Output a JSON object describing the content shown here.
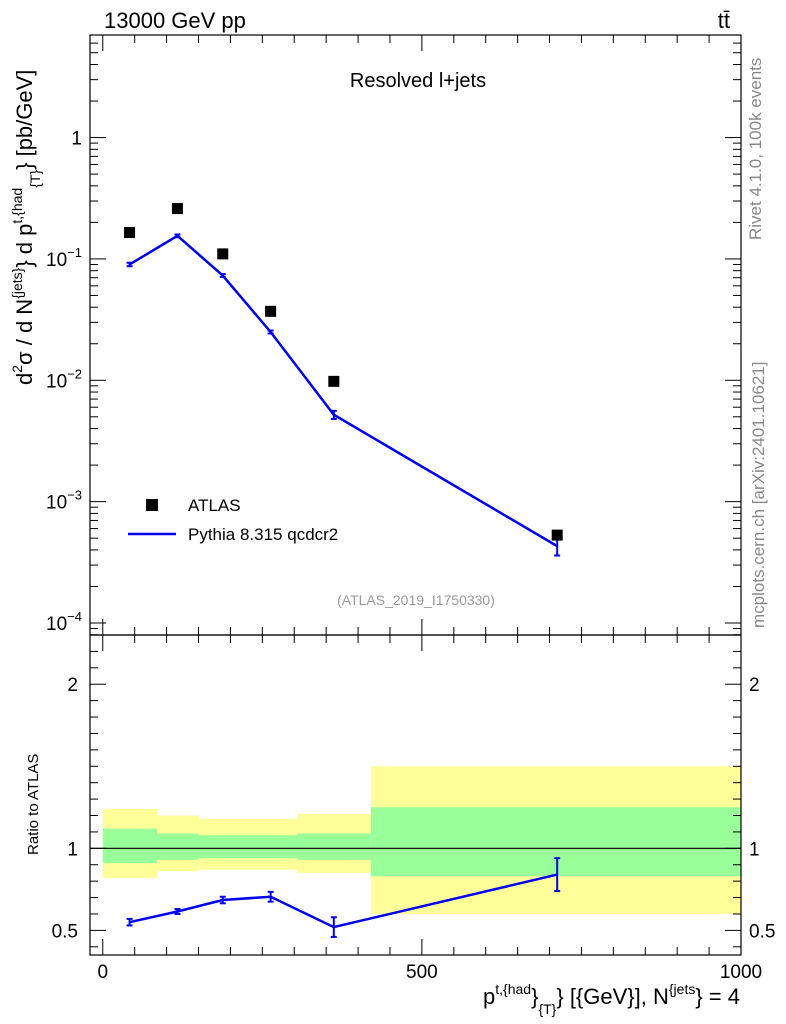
{
  "header": {
    "energy_label": "13000 GeV pp",
    "process_label": "tt̄"
  },
  "side_labels": {
    "rivet": "Rivet 4.1.0,  100k events",
    "mcplots": "mcplots.cern.ch [arXiv:2401.10621]"
  },
  "chart_data": [
    {
      "type": "scatter",
      "panel": "main",
      "title": "Resolved l+jets",
      "analysis_label": "(ATLAS_2019_I1750330)",
      "yscale": "log",
      "ylabel": {
        "base": "d",
        "sup1": "2",
        "mid": "σ  /  d N",
        "sup2": "{jets}",
        "rest": "} d p",
        "sup3": "t,{had",
        "sub": "{T}",
        "end": "} [pb/GeV]"
      },
      "xlim": [
        -20,
        1000
      ],
      "ylim": [
        0.0001,
        7
      ],
      "y_ticks": [
        {
          "v": 0.0001,
          "label": "10",
          "exp": "−4"
        },
        {
          "v": 0.001,
          "label": "10",
          "exp": "−3"
        },
        {
          "v": 0.01,
          "label": "10",
          "exp": "−2"
        },
        {
          "v": 0.1,
          "label": "10",
          "exp": "−1"
        },
        {
          "v": 1,
          "label": "1",
          "exp": ""
        }
      ],
      "legend": [
        {
          "name": "ATLAS",
          "marker": "square",
          "color": "#000000"
        },
        {
          "name": "Pythia 8.315 qcdcr2",
          "marker": "line",
          "color": "#0000ee"
        }
      ],
      "series": [
        {
          "name": "ATLAS",
          "color": "#000000",
          "x": [
            42,
            117,
            188,
            263,
            362,
            712
          ],
          "y": [
            0.165,
            0.26,
            0.11,
            0.037,
            0.0098,
            0.00053
          ]
        },
        {
          "name": "Pythia 8.315 qcdcr2",
          "color": "#0000ee",
          "x": [
            42,
            117,
            188,
            263,
            362,
            712
          ],
          "y": [
            0.09,
            0.155,
            0.073,
            0.025,
            0.0052,
            0.00043
          ],
          "err_lo": [
            0.087,
            0.151,
            0.071,
            0.0243,
            0.0048,
            0.00036
          ],
          "err_hi": [
            0.093,
            0.159,
            0.075,
            0.0257,
            0.0056,
            0.0005
          ]
        }
      ]
    },
    {
      "type": "line",
      "panel": "ratio",
      "ylabel": "Ratio to ATLAS",
      "xlabel": {
        "base": "p",
        "sup1": "t,{had",
        "mid": "}",
        "sub": "{T}",
        "rest": "} [{GeV}], N",
        "sup2": "{jets",
        "end": "} = 4"
      },
      "xlim": [
        -20,
        1000
      ],
      "ylim": [
        0.35,
        2.3
      ],
      "x_ticks": [
        0,
        500,
        1000
      ],
      "y_ticks": [
        0.5,
        1,
        2
      ],
      "reference": 1,
      "bands": [
        {
          "x0": 0,
          "x1": 85,
          "yellow": [
            0.82,
            1.24
          ],
          "green": [
            0.91,
            1.12
          ]
        },
        {
          "x0": 85,
          "x1": 150,
          "yellow": [
            0.86,
            1.2
          ],
          "green": [
            0.93,
            1.09
          ]
        },
        {
          "x0": 150,
          "x1": 305,
          "yellow": [
            0.87,
            1.18
          ],
          "green": [
            0.94,
            1.08
          ]
        },
        {
          "x0": 305,
          "x1": 420,
          "yellow": [
            0.85,
            1.21
          ],
          "green": [
            0.93,
            1.09
          ]
        },
        {
          "x0": 420,
          "x1": 1000,
          "yellow": [
            0.6,
            1.5
          ],
          "green": [
            0.83,
            1.25
          ]
        }
      ],
      "series": [
        {
          "name": "Pythia 8.315 qcdcr2",
          "color": "#0000ee",
          "x": [
            42,
            117,
            188,
            263,
            362,
            712
          ],
          "y": [
            0.55,
            0.615,
            0.685,
            0.705,
            0.52,
            0.84
          ],
          "err_lo": [
            0.53,
            0.6,
            0.665,
            0.675,
            0.46,
            0.74
          ],
          "err_hi": [
            0.57,
            0.63,
            0.705,
            0.735,
            0.58,
            0.94
          ]
        }
      ]
    }
  ]
}
